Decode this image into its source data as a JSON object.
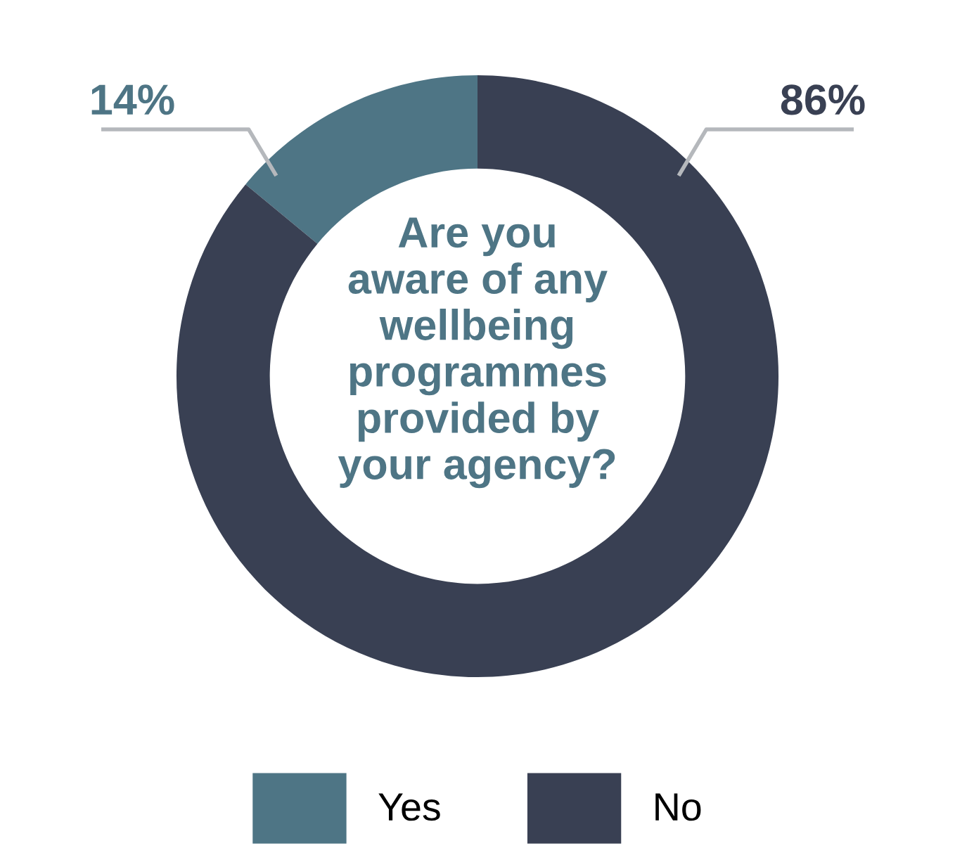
{
  "chart_data": {
    "type": "donut",
    "title": "Are you\naware of any\nwellbeing\nprogrammes\nprovided by\nyour agency?",
    "categories": [
      "Yes",
      "No"
    ],
    "values": [
      14,
      86
    ],
    "colors": [
      "#4e7585",
      "#394053"
    ],
    "value_labels": [
      "14%",
      "86%"
    ],
    "legend": "bottom"
  }
}
